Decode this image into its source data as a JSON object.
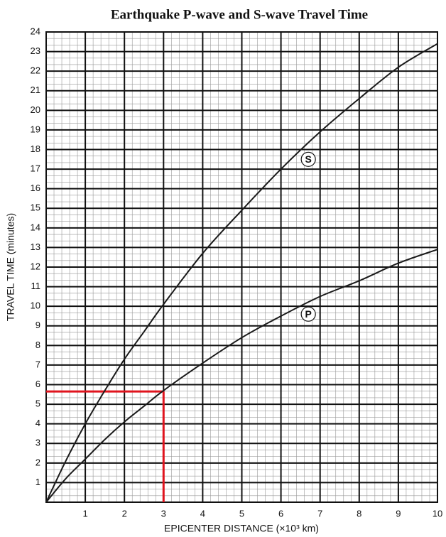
{
  "chart_data": {
    "type": "line",
    "title": "Earthquake P-wave and S-wave Travel Time",
    "xlabel": "EPICENTER DISTANCE (×10³ km)",
    "ylabel": "TRAVEL TIME (minutes)",
    "x": [
      0,
      0.5,
      1,
      1.5,
      2,
      2.5,
      3,
      4,
      5,
      6,
      7,
      8,
      9,
      10
    ],
    "series": [
      {
        "name": "S",
        "color": "#1a1a1a",
        "values": [
          0,
          2.1,
          4.0,
          5.7,
          7.3,
          8.7,
          10.1,
          12.7,
          14.9,
          17.0,
          18.9,
          20.6,
          22.2,
          23.4
        ]
      },
      {
        "name": "P",
        "color": "#1a1a1a",
        "values": [
          0,
          1.2,
          2.2,
          3.2,
          4.1,
          4.9,
          5.7,
          7.1,
          8.4,
          9.5,
          10.5,
          11.3,
          12.2,
          12.9
        ]
      }
    ],
    "reference": {
      "x": 3,
      "y": 5.65,
      "color": "#e0141e"
    },
    "xlim": [
      0,
      10
    ],
    "ylim": [
      0,
      24
    ],
    "xticks": [
      1,
      2,
      3,
      4,
      5,
      6,
      7,
      8,
      9,
      10
    ],
    "yticks": [
      1,
      2,
      3,
      4,
      5,
      6,
      7,
      8,
      9,
      10,
      11,
      12,
      13,
      14,
      15,
      16,
      17,
      18,
      19,
      20,
      21,
      22,
      23,
      24
    ],
    "grid": true
  }
}
